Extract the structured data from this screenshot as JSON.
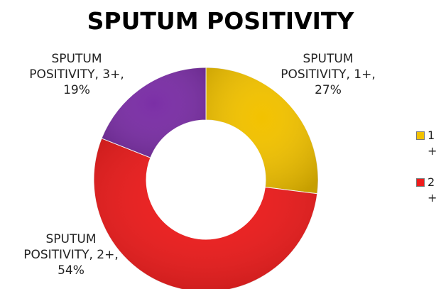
{
  "chart_data": {
    "type": "pie",
    "subtype": "donut",
    "title": "SPUTUM POSITIVITY",
    "categories": [
      "1+",
      "2+",
      "3+"
    ],
    "series": [
      {
        "values": [
          27,
          54,
          19
        ]
      }
    ],
    "data_labels": [
      {
        "line1": "SPUTUM",
        "line2": "POSITIVITY, 1+,",
        "line3": "27%"
      },
      {
        "line1": "SPUTUM",
        "line2": "POSITIVITY, 2+,",
        "line3": "54%"
      },
      {
        "line1": "SPUTUM",
        "line2": "POSITIVITY, 3+,",
        "line3": "19%"
      }
    ],
    "legend": {
      "placement": "right",
      "entries": [
        {
          "text": "1+",
          "color": "#f2c200"
        },
        {
          "text": "2+",
          "color": "#ee1c1c"
        }
      ]
    },
    "colors": [
      "#f2c200",
      "#ee1c1c",
      "#7b2fa6"
    ]
  }
}
